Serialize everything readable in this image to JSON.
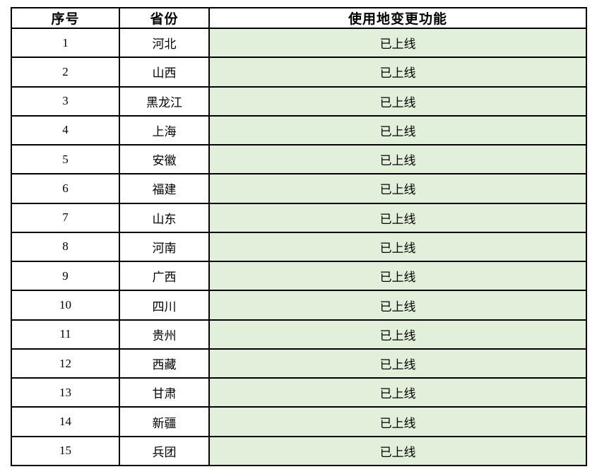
{
  "colors": {
    "status_bg": "#e2efda",
    "border": "#000000",
    "text": "#000000"
  },
  "table": {
    "headers": [
      "序号",
      "省份",
      "使用地变更功能"
    ],
    "rows": [
      {
        "no": "1",
        "province": "河北",
        "status": "已上线"
      },
      {
        "no": "2",
        "province": "山西",
        "status": "已上线"
      },
      {
        "no": "3",
        "province": "黑龙江",
        "status": "已上线"
      },
      {
        "no": "4",
        "province": "上海",
        "status": "已上线"
      },
      {
        "no": "5",
        "province": "安徽",
        "status": "已上线"
      },
      {
        "no": "6",
        "province": "福建",
        "status": "已上线"
      },
      {
        "no": "7",
        "province": "山东",
        "status": "已上线"
      },
      {
        "no": "8",
        "province": "河南",
        "status": "已上线"
      },
      {
        "no": "9",
        "province": "广西",
        "status": "已上线"
      },
      {
        "no": "10",
        "province": "四川",
        "status": "已上线"
      },
      {
        "no": "11",
        "province": "贵州",
        "status": "已上线"
      },
      {
        "no": "12",
        "province": "西藏",
        "status": "已上线"
      },
      {
        "no": "13",
        "province": "甘肃",
        "status": "已上线"
      },
      {
        "no": "14",
        "province": "新疆",
        "status": "已上线"
      },
      {
        "no": "15",
        "province": "兵团",
        "status": "已上线"
      }
    ]
  }
}
